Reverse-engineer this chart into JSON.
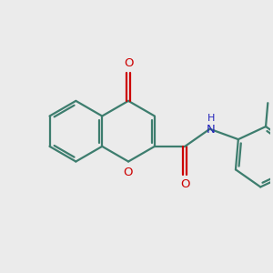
{
  "background_color": "#ebebeb",
  "bond_color": "#3d7d6e",
  "oxygen_color": "#cc0000",
  "nitrogen_color": "#2222bb",
  "line_width": 1.6,
  "figsize": [
    3.0,
    3.0
  ],
  "dpi": 100,
  "xlim": [
    -3.8,
    3.8
  ],
  "ylim": [
    -2.5,
    2.5
  ]
}
